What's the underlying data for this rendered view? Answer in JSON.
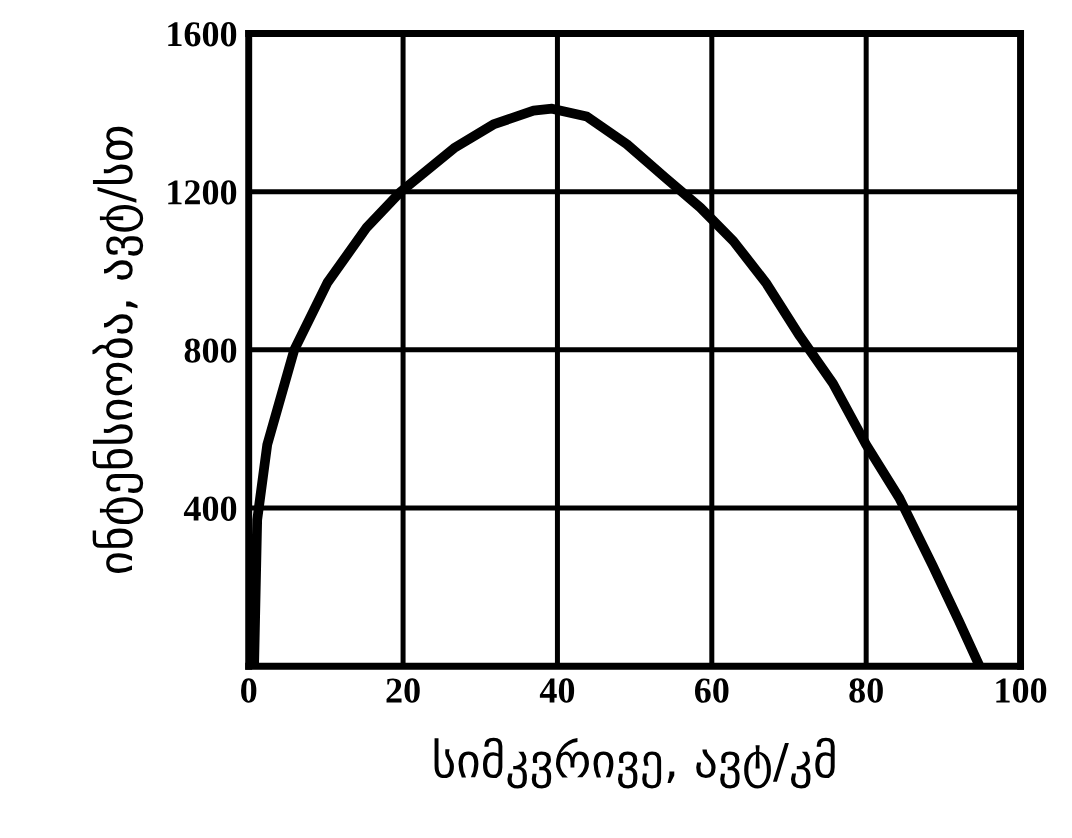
{
  "chart_data": {
    "type": "line",
    "xlabel": "სიმკვრივე, ავტ/კმ",
    "ylabel": "ინტენსიობა, ავტ/სთ",
    "x": [
      0.7,
      1.1,
      2.4,
      5.9,
      10.2,
      15.3,
      19.7,
      26.6,
      31.7,
      36.9,
      39.3,
      43.8,
      49,
      54,
      58.5,
      62.8,
      67,
      71.4,
      75.7,
      80,
      84.3,
      88.6,
      92,
      94.7
    ],
    "series": [
      {
        "color": "#000000",
        "values": [
          0,
          370,
          560,
          800,
          970,
          1110,
          1200,
          1310,
          1370,
          1405,
          1410,
          1390,
          1320,
          1235,
          1160,
          1075,
          970,
          835,
          715,
          560,
          425,
          255,
          115,
          0
        ]
      }
    ],
    "xlim": [
      0,
      100
    ],
    "ylim": [
      0,
      1600
    ],
    "xticks": [
      0,
      20,
      40,
      60,
      80,
      100
    ],
    "yticks": [
      {
        "value": 0,
        "label": null
      },
      400,
      800,
      1200,
      1600
    ],
    "grid": true
  }
}
